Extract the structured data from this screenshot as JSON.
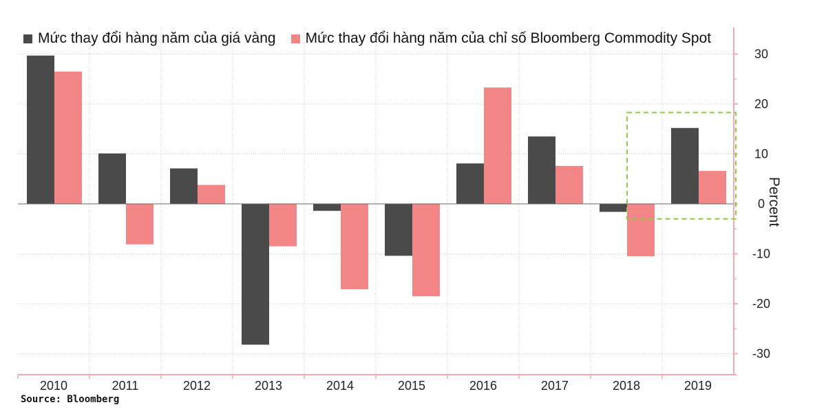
{
  "colors": {
    "gold": "#4a4a4a",
    "commodity": "#f28585",
    "highlight": "#8ccc44",
    "axis": "#f2aab0",
    "grid": "#c8c8c8"
  },
  "source": "Source: Bloomberg",
  "chart_data": {
    "type": "bar",
    "title": "",
    "xlabel": "",
    "ylabel": "Percent",
    "ylim": [
      -32,
      33
    ],
    "yticks": [
      30,
      20,
      10,
      0,
      -10,
      -20,
      -30
    ],
    "ytick_labels": [
      "30",
      "20",
      "10",
      "0",
      "-10",
      "-20",
      "-30"
    ],
    "categories": [
      "2010",
      "2011",
      "2012",
      "2013",
      "2014",
      "2015",
      "2016",
      "2017",
      "2018",
      "2019"
    ],
    "series": [
      {
        "name": "Mức thay đổi hàng năm của giá vàng",
        "color": "#4a4a4a",
        "values": [
          29.7,
          10.1,
          7.1,
          -28.2,
          -1.4,
          -10.4,
          8.1,
          13.5,
          -1.6,
          15.2
        ]
      },
      {
        "name": "Mức thay đổi hàng năm của chỉ số Bloomberg Commodity Spot",
        "color": "#f28585",
        "values": [
          26.5,
          -8.1,
          3.8,
          -8.5,
          -17.1,
          -18.5,
          23.3,
          7.6,
          -10.5,
          6.6
        ]
      }
    ],
    "annotation": {
      "type": "dashed-box",
      "categories": [
        "2018",
        "2019"
      ],
      "y_range": [
        -3,
        18.3
      ]
    },
    "legend_position": "top-left"
  }
}
